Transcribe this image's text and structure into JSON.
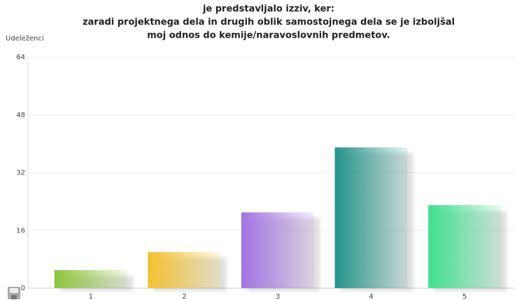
{
  "chart_data": {
    "type": "bar",
    "title": [
      "je predstavljalo izziv,  ker:",
      "zaradi projektnega dela in drugih oblik samostojnega dela se je izboljšal",
      "moj odnos do kemije/naravoslovnih predmetov."
    ],
    "y_label": "Udeleženci",
    "categories": [
      "1",
      "2",
      "3",
      "4",
      "5"
    ],
    "values": [
      5,
      10,
      21,
      39,
      23
    ],
    "colors": [
      "#8cc43c",
      "#f2c12e",
      "#a272e2",
      "#22948a",
      "#3ee08e"
    ],
    "ylim": [
      0,
      64
    ],
    "yticks": [
      0,
      16,
      32,
      48,
      64
    ],
    "grid": true
  }
}
